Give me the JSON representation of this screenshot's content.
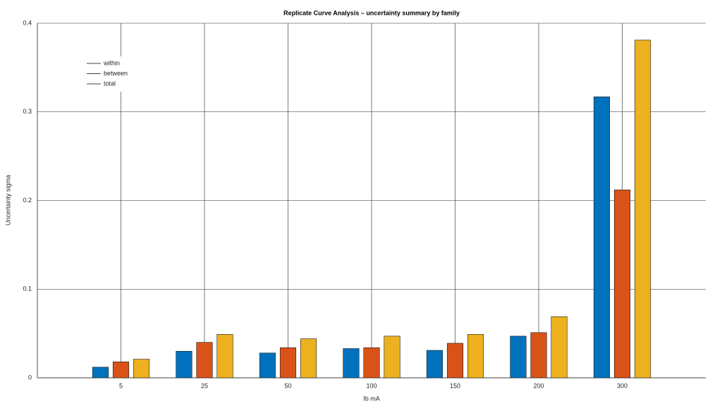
{
  "chart_data": {
    "type": "bar",
    "title": "Replicate Curve Analysis – uncertainty summary by family",
    "x_label": "Ib mA",
    "y_label": "Uncertainty sigma",
    "categories": [
      "5",
      "25",
      "50",
      "100",
      "150",
      "200",
      "300"
    ],
    "series": [
      {
        "name": "within",
        "color": "#0072bd",
        "values": [
          0.012,
          0.03,
          0.028,
          0.033,
          0.031,
          0.047,
          0.317
        ]
      },
      {
        "name": "between",
        "color": "#d95319",
        "values": [
          0.018,
          0.04,
          0.034,
          0.034,
          0.039,
          0.051,
          0.212
        ]
      },
      {
        "name": "total",
        "color": "#edb120",
        "values": [
          0.021,
          0.049,
          0.044,
          0.047,
          0.049,
          0.069,
          0.381
        ]
      }
    ],
    "ylim": [
      0,
      0.4
    ],
    "yticks": [
      0,
      0.1,
      0.2,
      0.3,
      0.4
    ],
    "grid": true,
    "legend": "northwest"
  }
}
